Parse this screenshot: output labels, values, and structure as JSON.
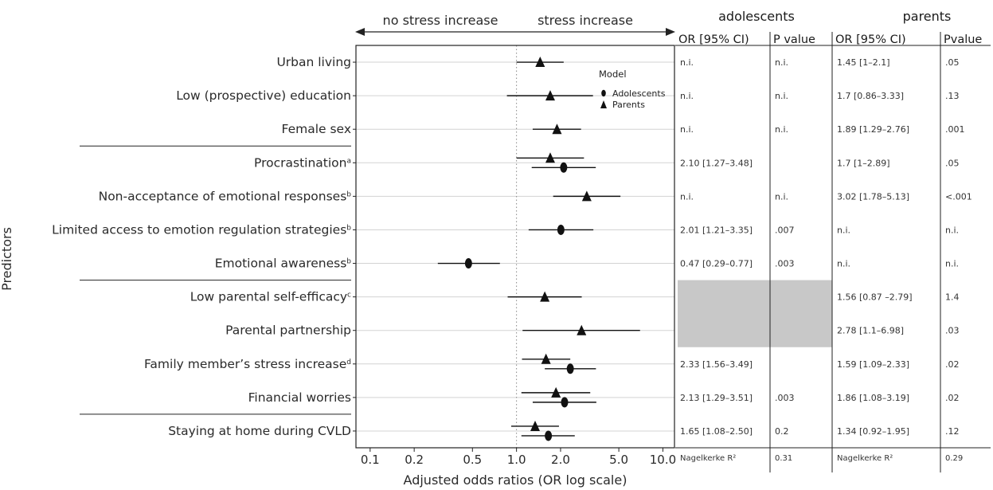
{
  "chart_data": {
    "type": "forest",
    "ylabel": "Predictors",
    "xlabel": "Adjusted odds ratios (OR log scale)",
    "x_scale": "log",
    "xlim": [
      0.08,
      12
    ],
    "xticks": [
      0.1,
      0.2,
      0.5,
      1.0,
      2.0,
      5.0,
      10.0
    ],
    "xtick_labels": [
      "0.1",
      "0.2",
      "0.5",
      "1.0",
      "2.0",
      "5.0",
      "10.0"
    ],
    "reference_line": 1.0,
    "direction_labels": {
      "left": "no stress increase",
      "right": "stress increase"
    },
    "legend": {
      "title": "Model",
      "items": [
        {
          "name": "Adolescents",
          "marker": "ellipse"
        },
        {
          "name": "Parents",
          "marker": "triangle"
        }
      ]
    },
    "predictors": [
      {
        "label": "Urban living",
        "sup": "",
        "parents": {
          "or": 1.45,
          "lo": 1.0,
          "hi": 2.1
        },
        "adolescents": null
      },
      {
        "label": "Low (prospective) education",
        "sup": "",
        "parents": {
          "or": 1.7,
          "lo": 0.86,
          "hi": 3.33
        },
        "adolescents": null
      },
      {
        "label": "Female sex",
        "sup": "",
        "parents": {
          "or": 1.89,
          "lo": 1.29,
          "hi": 2.76
        },
        "adolescents": null
      },
      {
        "label": "Procrastination",
        "sup": "a",
        "parents": {
          "or": 1.7,
          "lo": 1.0,
          "hi": 2.89
        },
        "adolescents": {
          "or": 2.1,
          "lo": 1.27,
          "hi": 3.48
        }
      },
      {
        "label": "Non-acceptance of emotional responses",
        "sup": "b",
        "parents": {
          "or": 3.02,
          "lo": 1.78,
          "hi": 5.13
        },
        "adolescents": null
      },
      {
        "label": "Limited access to emotion regulation strategies",
        "sup": "b",
        "parents": null,
        "adolescents": {
          "or": 2.01,
          "lo": 1.21,
          "hi": 3.35
        }
      },
      {
        "label": "Emotional awareness",
        "sup": "b",
        "parents": null,
        "adolescents": {
          "or": 0.47,
          "lo": 0.29,
          "hi": 0.77
        }
      },
      {
        "label": "Low parental self-efficacy",
        "sup": "c",
        "parents": {
          "or": 1.56,
          "lo": 0.87,
          "hi": 2.79
        },
        "adolescents": null
      },
      {
        "label": "Parental partnership",
        "sup": "",
        "parents": {
          "or": 2.78,
          "lo": 1.1,
          "hi": 6.98
        },
        "adolescents": null
      },
      {
        "label": "Family member’s stress increase",
        "sup": "d",
        "parents": {
          "or": 1.59,
          "lo": 1.09,
          "hi": 2.33
        },
        "adolescents": {
          "or": 2.33,
          "lo": 1.56,
          "hi": 3.49
        }
      },
      {
        "label": "Financial worries",
        "sup": "",
        "parents": {
          "or": 1.86,
          "lo": 1.08,
          "hi": 3.19
        },
        "adolescents": {
          "or": 2.13,
          "lo": 1.29,
          "hi": 3.51
        }
      },
      {
        "label": "Staying at home during CVLD",
        "sup": "",
        "parents": {
          "or": 1.34,
          "lo": 0.92,
          "hi": 1.95
        },
        "adolescents": {
          "or": 1.65,
          "lo": 1.08,
          "hi": 2.5
        }
      }
    ],
    "group_separators_after": [
      2,
      6,
      10
    ]
  },
  "table": {
    "groups": [
      "adolescents",
      "parents"
    ],
    "columns": [
      "OR [95% CI)",
      "P value",
      "OR [95% CI)",
      "Pvalue"
    ],
    "rows": [
      [
        "n.i.",
        "n.i.",
        "1.45 [1–2.1]",
        ".05"
      ],
      [
        "n.i.",
        "n.i.",
        "1.7 [0.86–3.33]",
        ".13"
      ],
      [
        "n.i.",
        "n.i.",
        "1.89 [1.29–2.76]",
        ".001"
      ],
      [
        "2.10 [1.27–3.48]",
        "",
        "1.7 [1–2.89]",
        ".05"
      ],
      [
        "n.i.",
        "n.i.",
        "3.02 [1.78–5.13]",
        "<.001"
      ],
      [
        "2.01 [1.21–3.35]",
        ".007",
        "n.i.",
        "n.i."
      ],
      [
        "0.47 [0.29–0.77]",
        ".003",
        "n.i.",
        "n.i."
      ],
      [
        "",
        "",
        "1.56 [0.87 –2.79]",
        "1.4"
      ],
      [
        "",
        "",
        "2.78 [1.1–6.98]",
        ".03"
      ],
      [
        "2.33 [1.56–3.49]",
        "",
        "1.59 [1.09–2.33]",
        ".02"
      ],
      [
        "2.13 [1.29–3.51]",
        ".003",
        "1.86 [1.08–3.19]",
        ".02"
      ],
      [
        "1.65 [1.08–2.50]",
        "0.2",
        "1.34 [0.92–1.95]",
        ".12"
      ]
    ],
    "footer": [
      "Nagelkerke R²",
      "0.31",
      "Nagelkerke R²",
      "0.29"
    ],
    "shade_color": "#c8c8c8"
  },
  "colors": {
    "mark": "#111111",
    "grid": "#d3d3d3",
    "text": "#2a2a2a",
    "ref_line": "#888888"
  }
}
